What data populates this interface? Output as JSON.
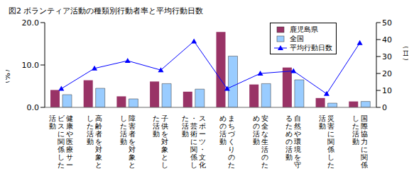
{
  "chart_data": {
    "type": "bar",
    "title": "図2 ボランティア活動の種類別行動者率と平均行動日数",
    "y_label": "（%）",
    "y2_label": "（日）",
    "categories": [
      "健康や医療サービスに関係した活動",
      "高齢者を対象とした活動",
      "障害者を対象とした活動",
      "子供を対象とした活動",
      "スポーツ・文化・芸術に関係した活動",
      "まちづくりのための活動",
      "安全な生活のための活動",
      "自然や環境を守るための活動",
      "災害に関係した活動",
      "国際協力に関係した活動"
    ],
    "series": [
      {
        "name": "鹿児島県",
        "type": "bar",
        "color": "#993366",
        "values": [
          4.1,
          6.4,
          2.6,
          6.1,
          3.7,
          17.8,
          5.4,
          9.4,
          2.2,
          1.4
        ]
      },
      {
        "name": "全国",
        "type": "bar",
        "color": "#99CCFF",
        "values": [
          3.0,
          4.5,
          2.0,
          5.6,
          4.3,
          12.1,
          5.6,
          6.5,
          1.0,
          1.4
        ]
      },
      {
        "name": "平均行動日数",
        "type": "line",
        "axis": "y2",
        "color": "#0000FF",
        "marker": "triangle",
        "values": [
          11,
          23,
          27.5,
          22,
          39,
          11,
          20,
          21.5,
          8,
          38
        ]
      }
    ],
    "ylim": [
      0,
      20
    ],
    "yticks": [
      {
        "value": 0,
        "label": "0.0"
      },
      {
        "value": 10,
        "label": "10.0"
      },
      {
        "value": 20,
        "label": "20.0"
      }
    ],
    "y2lim": [
      0,
      50
    ],
    "y2ticks": [
      0,
      10,
      20,
      30,
      40,
      50
    ],
    "grid": false,
    "legend": "upper right"
  }
}
